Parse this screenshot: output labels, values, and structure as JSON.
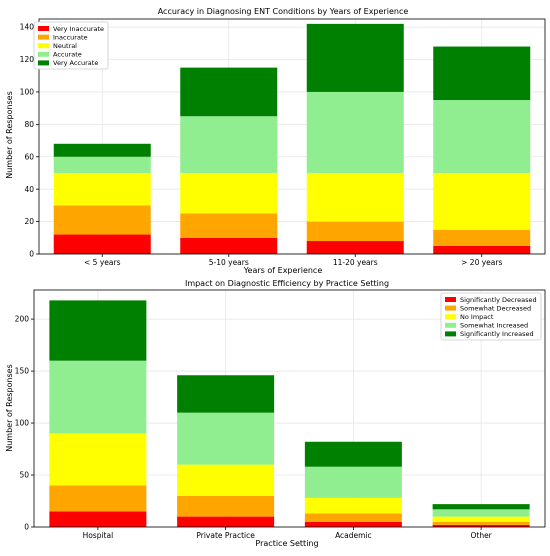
{
  "chart_data": [
    {
      "type": "bar",
      "stacked": true,
      "title": "Accuracy in Diagnosing ENT Conditions by Years of Experience",
      "xlabel": "Years of Experience",
      "ylabel": "Number of Responses",
      "categories": [
        "< 5 years",
        "5-10 years",
        "11-20 years",
        "> 20 years"
      ],
      "ylim": [
        0,
        145
      ],
      "yticks": [
        0,
        20,
        40,
        60,
        80,
        100,
        120,
        140
      ],
      "grid": true,
      "legend_position": "top-left",
      "series": [
        {
          "name": "Very Inaccurate",
          "color": "#ff0000",
          "values": [
            12,
            10,
            8,
            5
          ]
        },
        {
          "name": "Inaccurate",
          "color": "#ffa500",
          "values": [
            18,
            15,
            12,
            10
          ]
        },
        {
          "name": "Neutral",
          "color": "#ffff00",
          "values": [
            20,
            25,
            30,
            35
          ]
        },
        {
          "name": "Accurate",
          "color": "#90ee90",
          "values": [
            10,
            35,
            50,
            45
          ]
        },
        {
          "name": "Very Accurate",
          "color": "#008000",
          "values": [
            8,
            30,
            42,
            33
          ]
        }
      ]
    },
    {
      "type": "bar",
      "stacked": true,
      "title": "Impact on Diagnostic Efficiency by Practice Setting",
      "xlabel": "Practice Setting",
      "ylabel": "Number of Responses",
      "categories": [
        "Hospital",
        "Private Practice",
        "Academic",
        "Other"
      ],
      "ylim": [
        0,
        228
      ],
      "yticks": [
        0,
        50,
        100,
        150,
        200
      ],
      "grid": true,
      "legend_position": "top-right",
      "series": [
        {
          "name": "Significantly Decreased",
          "color": "#ff0000",
          "values": [
            15,
            10,
            5,
            2
          ]
        },
        {
          "name": "Somewhat Decreased",
          "color": "#ffa500",
          "values": [
            25,
            20,
            8,
            3
          ]
        },
        {
          "name": "No Impact",
          "color": "#ffff00",
          "values": [
            50,
            30,
            15,
            5
          ]
        },
        {
          "name": "Somewhat Increased",
          "color": "#90ee90",
          "values": [
            70,
            50,
            30,
            7
          ]
        },
        {
          "name": "Significantly Increased",
          "color": "#008000",
          "values": [
            58,
            36,
            24,
            5
          ]
        }
      ]
    }
  ]
}
